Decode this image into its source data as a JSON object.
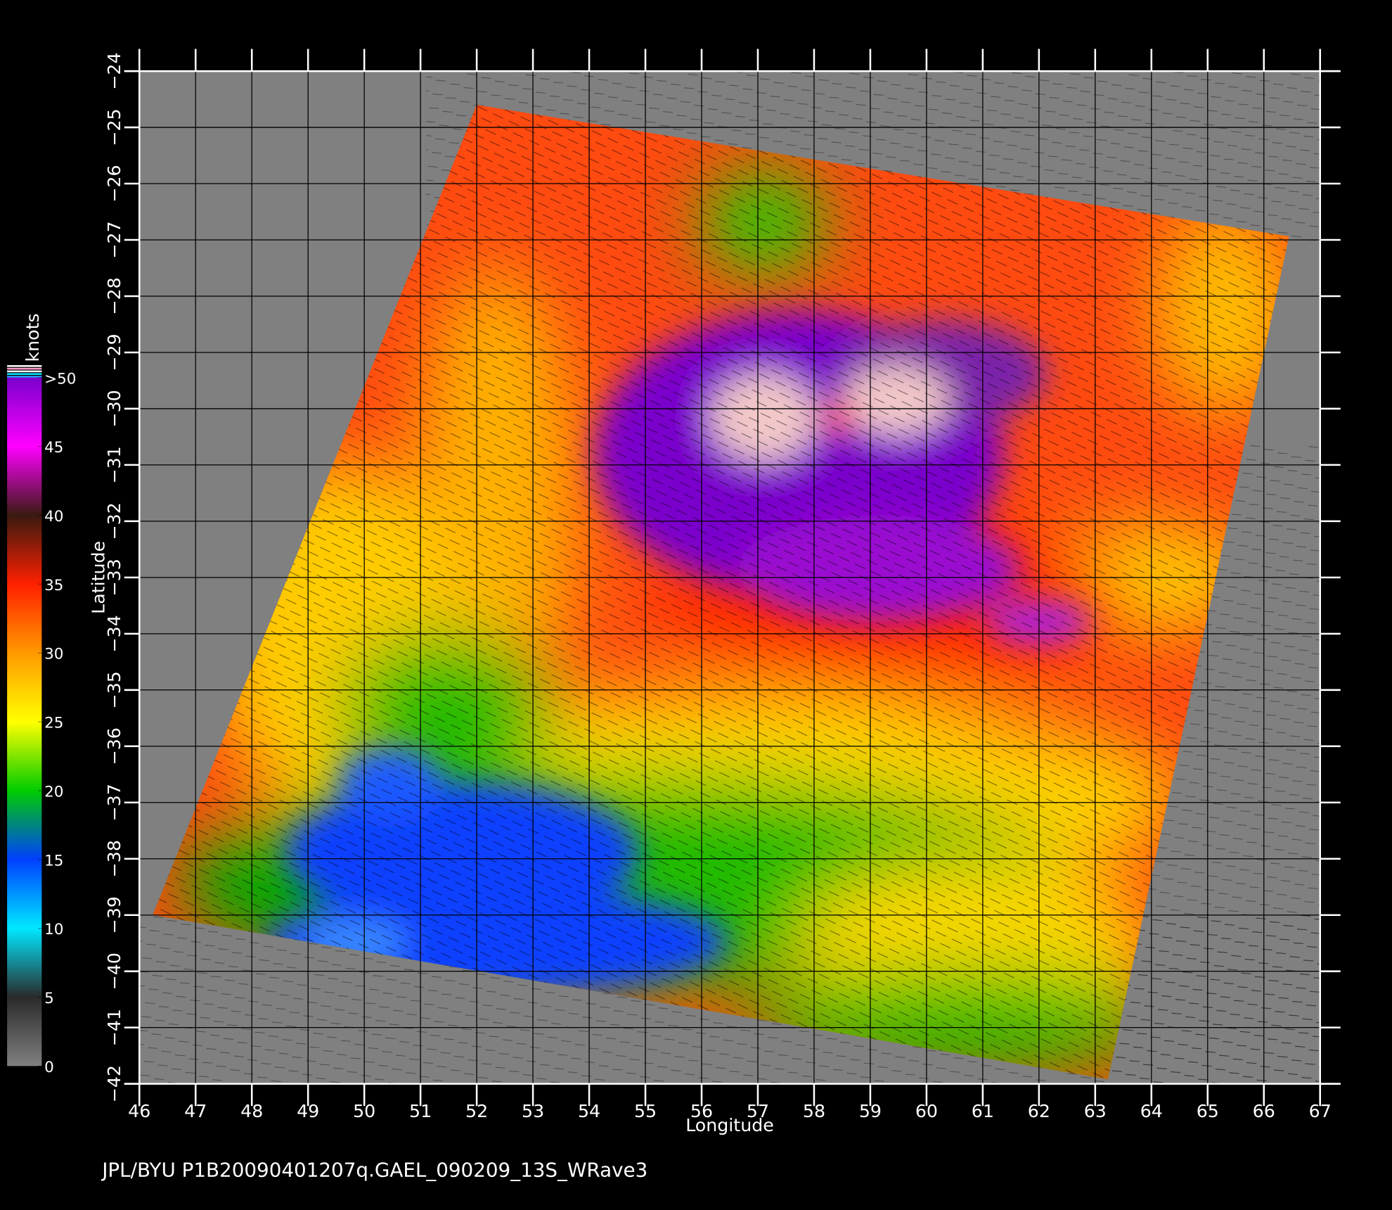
{
  "chart_data": {
    "type": "map",
    "xlabel": "Longitude",
    "ylabel": "Latitude",
    "footer": "JPL/BYU  P1B20090401207q.GAEL_090209_13S_WRave3",
    "xlim": [
      46,
      67
    ],
    "ylim": [
      -42,
      -24
    ],
    "xticks": [
      46,
      47,
      48,
      49,
      50,
      51,
      52,
      53,
      54,
      55,
      56,
      57,
      58,
      59,
      60,
      61,
      62,
      63,
      64,
      65,
      66,
      67
    ],
    "yticks": [
      {
        "value": -42,
        "label": "−42"
      },
      {
        "value": -41,
        "label": "−41"
      },
      {
        "value": -40,
        "label": "−40"
      },
      {
        "value": -39,
        "label": "−39"
      },
      {
        "value": -38,
        "label": "−38"
      },
      {
        "value": -37,
        "label": "−37"
      },
      {
        "value": -36,
        "label": "−36"
      },
      {
        "value": -35,
        "label": "−35"
      },
      {
        "value": -34,
        "label": "−34"
      },
      {
        "value": -33,
        "label": "−33"
      },
      {
        "value": -32,
        "label": "−32"
      },
      {
        "value": -31,
        "label": "−31"
      },
      {
        "value": -30,
        "label": "−30"
      },
      {
        "value": -29,
        "label": "−29"
      },
      {
        "value": -28,
        "label": "−28"
      },
      {
        "value": -27,
        "label": "−27"
      },
      {
        "value": -26,
        "label": "−26"
      },
      {
        "value": -25,
        "label": "−25"
      },
      {
        "value": -24,
        "label": "−24"
      }
    ],
    "grid": true,
    "colorbar": {
      "label": "knots",
      "lim": [
        0,
        50
      ],
      "ticks": [
        0,
        5,
        10,
        15,
        20,
        25,
        30,
        35,
        40,
        45,
        {
          "value": 50,
          "label": ">50"
        }
      ],
      "colors": [
        "#808080",
        "#2a2a2a",
        "#00e8ff",
        "#0040ff",
        "#00cc00",
        "#ffff00",
        "#ff9900",
        "#ff2000",
        "#3a1a10",
        "#ff00ff",
        "#7a00cc"
      ]
    }
  }
}
